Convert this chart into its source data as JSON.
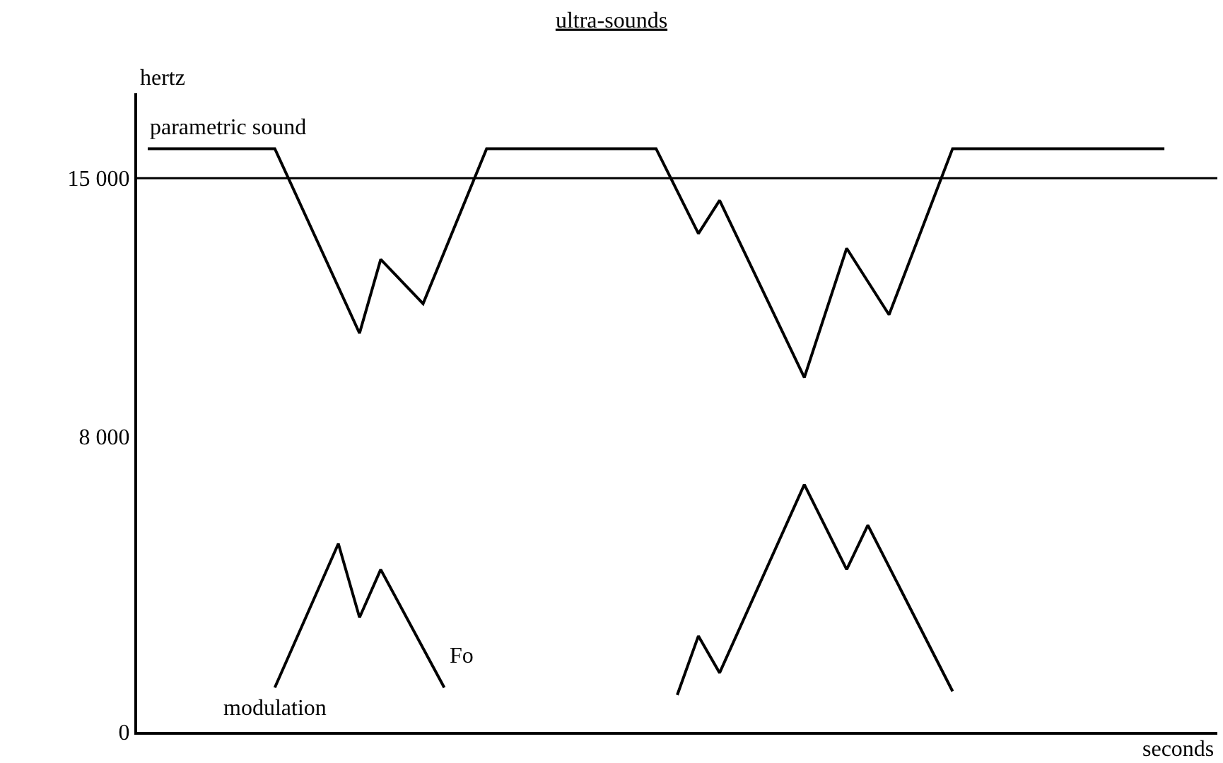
{
  "chart_data": {
    "type": "line",
    "title": "ultra-sounds",
    "xlabel": "seconds",
    "ylabel": "hertz",
    "categories": [
      null,
      null,
      null,
      null,
      null,
      null,
      null,
      null,
      null,
      null,
      null,
      null,
      null,
      null,
      null,
      null,
      null,
      null,
      null,
      null,
      null,
      null,
      null,
      null,
      null,
      null,
      null,
      null,
      null,
      null,
      null,
      null,
      null,
      null,
      null,
      null,
      null,
      null,
      null,
      null,
      null,
      null,
      null,
      null,
      null,
      null,
      null,
      null,
      null,
      null,
      null
    ],
    "ylim": [
      0,
      17300
    ],
    "yticks": [
      {
        "value": 0,
        "label": "0"
      },
      {
        "value": 8000,
        "label": "8 000"
      },
      {
        "value": 15000,
        "label": "15 000"
      }
    ],
    "tick_labels": "y",
    "legend": false,
    "marker": "none",
    "line_style": "solid",
    "series": [
      {
        "name": "parametric sound",
        "color": "#000000",
        "values": [
          15800,
          null,
          null,
          null,
          null,
          null,
          15800,
          null,
          null,
          null,
          10800,
          12800,
          null,
          11600,
          null,
          null,
          15800,
          null,
          null,
          null,
          null,
          null,
          null,
          null,
          15800,
          null,
          13500,
          14400,
          null,
          null,
          null,
          9600,
          null,
          13100,
          null,
          11300,
          null,
          null,
          15800,
          null,
          null,
          null,
          null,
          null,
          null,
          null,
          null,
          null,
          15800,
          null,
          null
        ]
      },
      {
        "name": "modulation",
        "color": "#000000",
        "values": [
          null,
          null,
          null,
          null,
          null,
          null,
          1200,
          null,
          null,
          5100,
          3100,
          4400,
          null,
          null,
          1200,
          null,
          null,
          null,
          null,
          null,
          null,
          null,
          null,
          null,
          null,
          null,
          null,
          null,
          null,
          null,
          null,
          null,
          null,
          null,
          null,
          null,
          null,
          null,
          null,
          null,
          null,
          null,
          null,
          null,
          null,
          null,
          null,
          null,
          null,
          null,
          null
        ]
      },
      {
        "color": "#000000",
        "values": [
          null,
          null,
          null,
          null,
          null,
          null,
          null,
          null,
          null,
          null,
          null,
          null,
          null,
          null,
          null,
          null,
          null,
          null,
          null,
          null,
          null,
          null,
          null,
          null,
          null,
          1000,
          2600,
          1600,
          null,
          null,
          null,
          6700,
          null,
          4400,
          5600,
          null,
          null,
          null,
          1100,
          null,
          null,
          null,
          null,
          null,
          null,
          null,
          null,
          null,
          null,
          null,
          null
        ]
      }
    ],
    "ref_lines": [
      {
        "axis": "y",
        "value": 15000,
        "color": "#000000",
        "line_style": "solid"
      }
    ],
    "annotations": [
      "Fo"
    ]
  }
}
